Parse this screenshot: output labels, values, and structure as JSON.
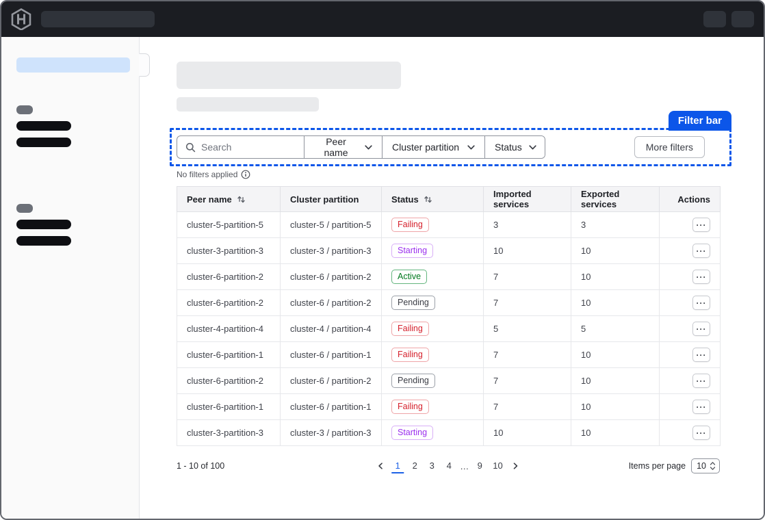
{
  "annotation": {
    "label": "Filter bar"
  },
  "filter_bar": {
    "search_placeholder": "Search",
    "dropdowns": [
      "Peer name",
      "Cluster partition",
      "Status"
    ],
    "more_filters_label": "More filters",
    "no_filters_text": "No filters applied"
  },
  "table": {
    "columns": [
      "Peer name",
      "Cluster partition",
      "Status",
      "Imported services",
      "Exported services",
      "Actions"
    ],
    "sortable_columns": [
      "Peer name",
      "Status"
    ],
    "rows": [
      {
        "peer_name": "cluster-5-partition-5",
        "cluster_partition": "cluster-5 / partition-5",
        "status": "Failing",
        "imported": "3",
        "exported": "3"
      },
      {
        "peer_name": "cluster-3-partition-3",
        "cluster_partition": "cluster-3 / partition-3",
        "status": "Starting",
        "imported": "10",
        "exported": "10"
      },
      {
        "peer_name": "cluster-6-partition-2",
        "cluster_partition": "cluster-6 / partition-2",
        "status": "Active",
        "imported": "7",
        "exported": "10"
      },
      {
        "peer_name": "cluster-6-partition-2",
        "cluster_partition": "cluster-6 / partition-2",
        "status": "Pending",
        "imported": "7",
        "exported": "10"
      },
      {
        "peer_name": "cluster-4-partition-4",
        "cluster_partition": "cluster-4 / partition-4",
        "status": "Failing",
        "imported": "5",
        "exported": "5"
      },
      {
        "peer_name": "cluster-6-partition-1",
        "cluster_partition": "cluster-6 / partition-1",
        "status": "Failing",
        "imported": "7",
        "exported": "10"
      },
      {
        "peer_name": "cluster-6-partition-2",
        "cluster_partition": "cluster-6 / partition-2",
        "status": "Pending",
        "imported": "7",
        "exported": "10"
      },
      {
        "peer_name": "cluster-6-partition-1",
        "cluster_partition": "cluster-6 / partition-1",
        "status": "Failing",
        "imported": "7",
        "exported": "10"
      },
      {
        "peer_name": "cluster-3-partition-3",
        "cluster_partition": "cluster-3 / partition-3",
        "status": "Starting",
        "imported": "10",
        "exported": "10"
      }
    ]
  },
  "pagination": {
    "range_text": "1 - 10 of 100",
    "pages": [
      "1",
      "2",
      "3",
      "4",
      "…",
      "9",
      "10"
    ],
    "active_page": "1",
    "items_per_page_label": "Items per page",
    "items_per_page_value": "10"
  },
  "colors": {
    "accent_blue": "#0c56e9",
    "status": {
      "Failing": {
        "text": "#d5202c",
        "border": "#efa5a8"
      },
      "Starting": {
        "text": "#9b2fee",
        "border": "#d8aef7"
      },
      "Active": {
        "text": "#00781e",
        "border": "#63b57e"
      },
      "Pending": {
        "text": "#3b3d45",
        "border": "#9ba0a8"
      }
    }
  },
  "icons": {
    "logo": "hashicorp-hexagon",
    "search": "magnifier",
    "dropdown_caret": "chevron-down",
    "sort": "arrows-up-down",
    "info": "info-circle",
    "ellipsis": "···",
    "prev": "chevron-left",
    "next": "chevron-right",
    "select_caret": "chevrons-up-down"
  }
}
